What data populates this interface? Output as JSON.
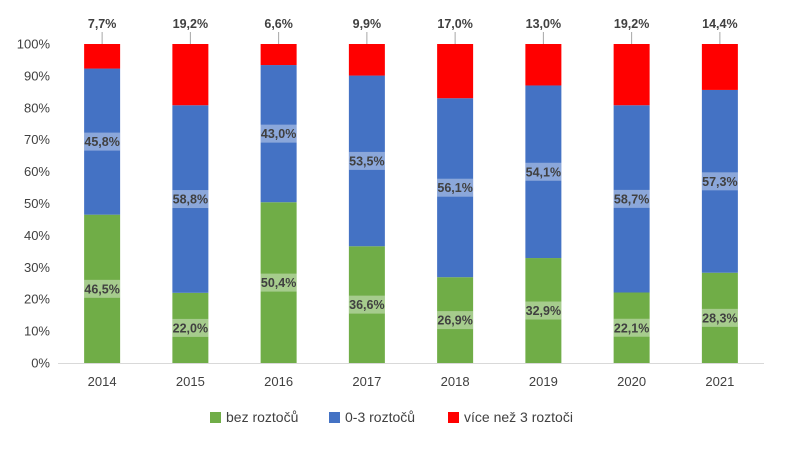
{
  "chart_data": {
    "type": "bar",
    "stacked": true,
    "percent": true,
    "categories": [
      "2014",
      "2015",
      "2016",
      "2017",
      "2018",
      "2019",
      "2020",
      "2021"
    ],
    "series": [
      {
        "name": "bez roztočů",
        "color": "#70AD47",
        "values": [
          46.5,
          22.0,
          50.4,
          36.6,
          26.9,
          32.9,
          22.1,
          28.3
        ],
        "labels": [
          "46,5%",
          "22,0%",
          "50,4%",
          "36,6%",
          "26,9%",
          "32,9%",
          "22,1%",
          "28,3%"
        ]
      },
      {
        "name": "0-3 roztočů",
        "color": "#4472C4",
        "values": [
          45.8,
          58.8,
          43.0,
          53.5,
          56.1,
          54.1,
          58.7,
          57.3
        ],
        "labels": [
          "45,8%",
          "58,8%",
          "43,0%",
          "53,5%",
          "56,1%",
          "54,1%",
          "58,7%",
          "57,3%"
        ]
      },
      {
        "name": "více než 3 roztoči",
        "color": "#FF0000",
        "values": [
          7.7,
          19.2,
          6.6,
          9.9,
          17.0,
          13.0,
          19.2,
          14.4
        ],
        "labels": [
          "7,7%",
          "19,2%",
          "6,6%",
          "9,9%",
          "17,0%",
          "13,0%",
          "19,2%",
          "14,4%"
        ]
      }
    ],
    "yticks": [
      "0%",
      "10%",
      "20%",
      "30%",
      "40%",
      "50%",
      "60%",
      "70%",
      "80%",
      "90%",
      "100%"
    ],
    "ylim": [
      0,
      100
    ],
    "grid": false,
    "legend": "bottom",
    "axis_color": "#D9D9D9"
  }
}
